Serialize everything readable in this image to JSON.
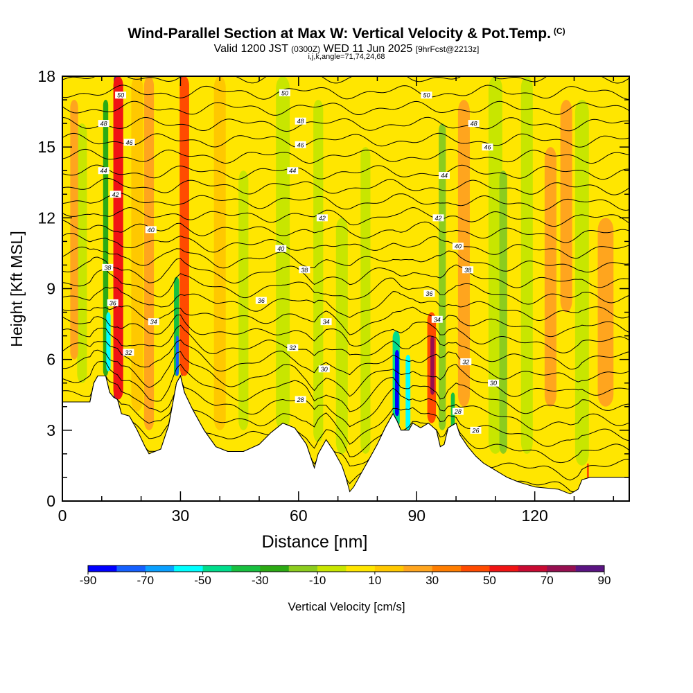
{
  "header": {
    "title": "Wind-Parallel Section at Max W: Vertical Velocity & Pot.Temp.",
    "copyright": "(C)",
    "valid_prefix": "Valid 1200 JST",
    "valid_utc": "(0300Z)",
    "valid_date": "WED 11 Jun 2025",
    "forecast": "[9hrFcst@2213z]",
    "params": "i,j,k,angle=71,74,24,68"
  },
  "colors": {
    "background": "#ffffff",
    "plot_fill": "#ffe600",
    "terrain": "#ffffff"
  },
  "chart_data": {
    "type": "heatmap",
    "title": "Wind-Parallel Section at Max W: Vertical Velocity & Pot.Temp.",
    "xlabel": "Distance [nm]",
    "ylabel": "Height [Kft MSL]",
    "xlim": [
      0,
      144
    ],
    "ylim": [
      0,
      18
    ],
    "x_ticks": [
      "0",
      "30",
      "60",
      "90",
      "120"
    ],
    "x_tick_values": [
      0,
      30,
      60,
      90,
      120
    ],
    "y_ticks": [
      "0",
      "3",
      "6",
      "9",
      "12",
      "15",
      "18"
    ],
    "y_tick_values": [
      0,
      3,
      6,
      9,
      12,
      15,
      18
    ],
    "grid": false,
    "colorbar": {
      "label": "Vertical Velocity [cm/s]",
      "bounds": [
        -90,
        -80,
        -70,
        -60,
        -50,
        -40,
        -30,
        -20,
        -10,
        0,
        10,
        20,
        30,
        40,
        50,
        60,
        70,
        80,
        90
      ],
      "tick_labels": [
        "-90",
        "-70",
        "-50",
        "-30",
        "-10",
        "10",
        "30",
        "50",
        "70",
        "90"
      ],
      "colors": [
        "#0000ff",
        "#1560ff",
        "#0aa0ff",
        "#00ffff",
        "#00dd8c",
        "#18c040",
        "#2caa14",
        "#8ccc1e",
        "#c8e600",
        "#ffe600",
        "#ffc800",
        "#ffa51e",
        "#ff7d00",
        "#ff4b00",
        "#f01414",
        "#c80a32",
        "#960f50",
        "#5a1482"
      ]
    },
    "terrain_profile": [
      [
        0,
        4.2
      ],
      [
        7,
        4.2
      ],
      [
        8,
        5
      ],
      [
        9,
        5.3
      ],
      [
        11,
        5.3
      ],
      [
        12,
        4.6
      ],
      [
        13,
        4.4
      ],
      [
        14,
        4.3
      ],
      [
        15,
        3.7
      ],
      [
        17,
        3.6
      ],
      [
        19,
        3
      ],
      [
        21,
        2.3
      ],
      [
        22,
        2
      ],
      [
        25,
        2.2
      ],
      [
        27,
        3.2
      ],
      [
        28,
        4.1
      ],
      [
        29,
        5
      ],
      [
        30,
        5.3
      ],
      [
        31,
        4.6
      ],
      [
        33,
        3.9
      ],
      [
        36,
        3
      ],
      [
        39,
        2.3
      ],
      [
        42,
        2.1
      ],
      [
        46,
        2.1
      ],
      [
        50,
        2.4
      ],
      [
        53,
        2.9
      ],
      [
        56,
        3.3
      ],
      [
        59,
        3.1
      ],
      [
        62,
        2.4
      ],
      [
        63,
        1.9
      ],
      [
        64,
        1.4
      ],
      [
        65,
        2
      ],
      [
        67,
        2.6
      ],
      [
        69,
        2.1
      ],
      [
        71,
        1.5
      ],
      [
        72,
        1
      ],
      [
        73,
        0.4
      ],
      [
        74,
        0.6
      ],
      [
        76,
        1.2
      ],
      [
        78,
        1.8
      ],
      [
        80,
        2.4
      ],
      [
        82,
        3.1
      ],
      [
        84,
        3.7
      ],
      [
        85,
        3.4
      ],
      [
        86,
        3
      ],
      [
        88,
        3
      ],
      [
        89,
        3.3
      ],
      [
        91,
        3.1
      ],
      [
        93,
        3.3
      ],
      [
        95,
        3
      ],
      [
        96,
        2.3
      ],
      [
        97,
        2.4
      ],
      [
        98,
        3.1
      ],
      [
        100,
        3.3
      ],
      [
        101,
        2.8
      ],
      [
        103,
        2.3
      ],
      [
        105,
        1.9
      ],
      [
        107,
        1.6
      ],
      [
        110,
        1.3
      ],
      [
        113,
        1
      ],
      [
        116,
        0.8
      ],
      [
        120,
        0.6
      ],
      [
        126,
        0.5
      ],
      [
        129,
        0.3
      ],
      [
        131,
        0.5
      ],
      [
        132,
        0.9
      ],
      [
        134,
        1
      ],
      [
        144,
        1
      ]
    ],
    "w_features": [
      {
        "x": 13.5,
        "y0": 4.3,
        "y1": 18,
        "w": 0.9,
        "v": 80
      },
      {
        "x": 14.2,
        "y0": 4.3,
        "y1": 18,
        "w": 2.5,
        "v": 50
      },
      {
        "x": 30.5,
        "y0": 5.3,
        "y1": 18,
        "w": 0.9,
        "v": 70
      },
      {
        "x": 31,
        "y0": 5.3,
        "y1": 18,
        "w": 2.4,
        "v": 40
      },
      {
        "x": 11,
        "y0": 5.3,
        "y1": 17,
        "w": 1.3,
        "v": -30
      },
      {
        "x": 11.7,
        "y0": 5.5,
        "y1": 8,
        "w": 1.1,
        "v": -55
      },
      {
        "x": 29,
        "y0": 5.3,
        "y1": 9.5,
        "w": 1.3,
        "v": -40
      },
      {
        "x": 29.2,
        "y0": 5.3,
        "y1": 7,
        "w": 0.7,
        "v": -75
      },
      {
        "x": 84.8,
        "y0": 3.1,
        "y1": 7.2,
        "w": 1.8,
        "v": -50
      },
      {
        "x": 85,
        "y0": 3.6,
        "y1": 6.4,
        "w": 1,
        "v": -85
      },
      {
        "x": 87.8,
        "y0": 3,
        "y1": 6.2,
        "w": 1.2,
        "v": -60
      },
      {
        "x": 93.8,
        "y0": 3.3,
        "y1": 8,
        "w": 2.2,
        "v": 40
      },
      {
        "x": 94,
        "y0": 4.5,
        "y1": 7,
        "w": 1,
        "v": 70
      },
      {
        "x": 96.5,
        "y0": 3,
        "y1": 16,
        "w": 1.8,
        "v": -20
      },
      {
        "x": 99.2,
        "y0": 3,
        "y1": 4.6,
        "w": 1,
        "v": -40
      },
      {
        "x": 19,
        "y0": 3.8,
        "y1": 18,
        "w": 3,
        "v": 10
      },
      {
        "x": 22,
        "y0": 3,
        "y1": 18,
        "w": 2.5,
        "v": 20
      },
      {
        "x": 40,
        "y0": 3,
        "y1": 18,
        "w": 3,
        "v": 10
      },
      {
        "x": 46,
        "y0": 3,
        "y1": 14,
        "w": 2.5,
        "v": -10
      },
      {
        "x": 56,
        "y0": 3,
        "y1": 18,
        "w": 3.5,
        "v": -10
      },
      {
        "x": 65,
        "y0": 2.5,
        "y1": 17,
        "w": 2.5,
        "v": -10
      },
      {
        "x": 71,
        "y0": 2,
        "y1": 12,
        "w": 3,
        "v": -10
      },
      {
        "x": 77,
        "y0": 2,
        "y1": 15,
        "w": 2.5,
        "v": -10
      },
      {
        "x": 102,
        "y0": 4,
        "y1": 17,
        "w": 3,
        "v": 20
      },
      {
        "x": 110,
        "y0": 2,
        "y1": 18,
        "w": 3.5,
        "v": -10
      },
      {
        "x": 112,
        "y0": 2,
        "y1": 14,
        "w": 2,
        "v": -20
      },
      {
        "x": 118,
        "y0": 2,
        "y1": 18,
        "w": 3,
        "v": -10
      },
      {
        "x": 124,
        "y0": 4,
        "y1": 15,
        "w": 3,
        "v": 20
      },
      {
        "x": 132,
        "y0": 1.5,
        "y1": 17,
        "w": 3.5,
        "v": -10
      },
      {
        "x": 138,
        "y0": 4,
        "y1": 12,
        "w": 4,
        "v": 20
      },
      {
        "x": 5,
        "y0": 5,
        "y1": 16,
        "w": 2.5,
        "v": -10
      },
      {
        "x": 3,
        "y0": 6,
        "y1": 17,
        "w": 2,
        "v": 20
      },
      {
        "x": 128,
        "y0": 8,
        "y1": 17,
        "w": 3,
        "v": 20
      },
      {
        "x": 133.5,
        "y0": 0.8,
        "y1": 1.6,
        "w": 0.5,
        "v": 40
      }
    ],
    "theta_levels": [
      25,
      26,
      27,
      28,
      29,
      30,
      31,
      32,
      33,
      34,
      35,
      36,
      37,
      38,
      39,
      40,
      41,
      42,
      43,
      44,
      45,
      46,
      47,
      48,
      49,
      50,
      51
    ],
    "theta_labels": [
      {
        "text": "50",
        "x": 14.8,
        "y": 17.2
      },
      {
        "text": "48",
        "x": 10.5,
        "y": 16.0
      },
      {
        "text": "46",
        "x": 17,
        "y": 15.2
      },
      {
        "text": "44",
        "x": 10.5,
        "y": 14.0
      },
      {
        "text": "42",
        "x": 13.5,
        "y": 13.0
      },
      {
        "text": "40",
        "x": 22.5,
        "y": 11.5
      },
      {
        "text": "38",
        "x": 11.5,
        "y": 9.9
      },
      {
        "text": "36",
        "x": 12.8,
        "y": 8.4
      },
      {
        "text": "34",
        "x": 23.2,
        "y": 7.6
      },
      {
        "text": "32",
        "x": 16.8,
        "y": 6.3
      },
      {
        "text": "50",
        "x": 56.5,
        "y": 17.3
      },
      {
        "text": "48",
        "x": 60.5,
        "y": 16.1
      },
      {
        "text": "46",
        "x": 60.5,
        "y": 15.1
      },
      {
        "text": "44",
        "x": 58.5,
        "y": 14.0
      },
      {
        "text": "42",
        "x": 66,
        "y": 12.0
      },
      {
        "text": "40",
        "x": 55.5,
        "y": 10.7
      },
      {
        "text": "38",
        "x": 61.5,
        "y": 9.8
      },
      {
        "text": "36",
        "x": 50.5,
        "y": 8.5
      },
      {
        "text": "34",
        "x": 67,
        "y": 7.6
      },
      {
        "text": "32",
        "x": 58.5,
        "y": 6.5
      },
      {
        "text": "30",
        "x": 66.5,
        "y": 5.6
      },
      {
        "text": "28",
        "x": 60.5,
        "y": 4.3
      },
      {
        "text": "50",
        "x": 92.5,
        "y": 17.2
      },
      {
        "text": "48",
        "x": 104.5,
        "y": 16.0
      },
      {
        "text": "46",
        "x": 108,
        "y": 15.0
      },
      {
        "text": "44",
        "x": 97,
        "y": 13.8
      },
      {
        "text": "42",
        "x": 95.5,
        "y": 12.0
      },
      {
        "text": "40",
        "x": 100.5,
        "y": 10.8
      },
      {
        "text": "38",
        "x": 103,
        "y": 9.8
      },
      {
        "text": "36",
        "x": 93.2,
        "y": 8.8
      },
      {
        "text": "34",
        "x": 95.2,
        "y": 7.7
      },
      {
        "text": "32",
        "x": 102.5,
        "y": 5.9
      },
      {
        "text": "30",
        "x": 109.5,
        "y": 5.0
      },
      {
        "text": "28",
        "x": 100.5,
        "y": 3.8
      },
      {
        "text": "26",
        "x": 105,
        "y": 3.0
      }
    ]
  }
}
